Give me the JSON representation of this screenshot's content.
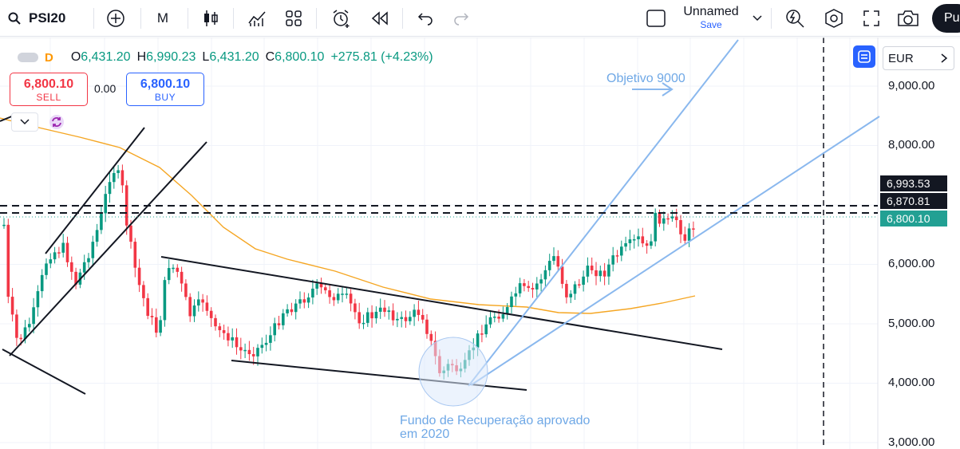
{
  "toolbar": {
    "symbol": "PSI20",
    "timeframe": "M",
    "layout_name": "Unnamed",
    "save_label": "Save",
    "publish_label": "Pu"
  },
  "legend": {
    "interval": "D",
    "open_key": "O",
    "open": "6,431.20",
    "high_key": "H",
    "high": "6,990.23",
    "low_key": "L",
    "low": "6,431.20",
    "close_key": "C",
    "close": "6,800.10",
    "change": "+275.81 (+4.23%)"
  },
  "trade": {
    "sell_price": "6,800.10",
    "sell_label": "SELL",
    "spread": "0.00",
    "buy_price": "6,800.10",
    "buy_label": "BUY"
  },
  "currency": "EUR",
  "price_axis": {
    "labels": [
      "9,000.00",
      "8,000.00",
      "6,000.00",
      "5,000.00",
      "4,000.00",
      "3,000.00"
    ],
    "tag_high": "6,993.53",
    "tag_mid": "6,870.81",
    "tag_last": "6,800.10"
  },
  "annotations": {
    "target": "Objetivo 9000",
    "recovery_line1": "Fundo de Recuperação aprovado",
    "recovery_line2": "em 2020"
  },
  "colors": {
    "up": "#089981",
    "down": "#f23645",
    "ma": "#f5a623",
    "trend_blue": "#8ab8ee",
    "accent": "#2962ff"
  }
}
